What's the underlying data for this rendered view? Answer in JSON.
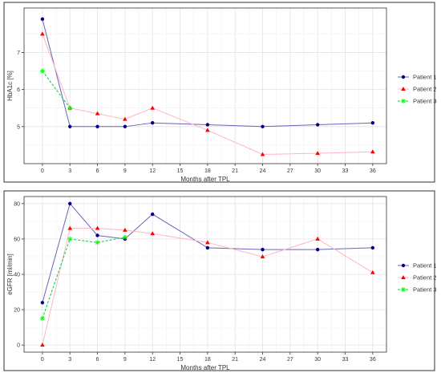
{
  "chart_data": [
    {
      "type": "line",
      "xlabel": "Months after TPL",
      "ylabel": "HbA1c [%]",
      "xlim": [
        -2,
        37.5
      ],
      "ylim": [
        4,
        8.2
      ],
      "x_ticks": [
        0,
        3,
        6,
        9,
        12,
        15,
        18,
        21,
        24,
        27,
        30,
        33,
        36
      ],
      "y_ticks": [
        5,
        6,
        7
      ],
      "grid": true,
      "legend_position": "right",
      "series": [
        {
          "name": "Patient 1",
          "color": "#00008B",
          "line_color": "#6666BB",
          "marker": "circle",
          "line_style": "solid",
          "x": [
            0,
            3,
            6,
            9,
            12,
            18,
            24,
            30,
            36
          ],
          "values": [
            7.9,
            5.0,
            5.0,
            5.0,
            5.1,
            5.05,
            5.0,
            5.05,
            5.1
          ]
        },
        {
          "name": "Patient 2",
          "color": "#FF0000",
          "line_color": "#FFB6C1",
          "marker": "triangle",
          "line_style": "solid",
          "x": [
            0,
            3,
            6,
            9,
            12,
            18,
            24,
            30,
            36
          ],
          "values": [
            7.5,
            5.5,
            5.35,
            5.2,
            5.5,
            4.9,
            4.25,
            4.28,
            4.32
          ]
        },
        {
          "name": "Patient 3",
          "color": "#00FF00",
          "line_color": "#00CC44",
          "marker": "star",
          "line_style": "dashed",
          "x": [
            0,
            3
          ],
          "values": [
            6.5,
            5.5
          ]
        }
      ]
    },
    {
      "type": "line",
      "xlabel": "Months after TPL",
      "ylabel": "eGFR [ml/min]",
      "xlim": [
        -2,
        37.5
      ],
      "ylim": [
        -4,
        84
      ],
      "x_ticks": [
        0,
        3,
        6,
        9,
        12,
        15,
        18,
        21,
        24,
        27,
        30,
        33,
        36
      ],
      "y_ticks": [
        0,
        20,
        40,
        60,
        80
      ],
      "grid": true,
      "legend_position": "right",
      "series": [
        {
          "name": "Patient 1",
          "color": "#00008B",
          "line_color": "#6666BB",
          "marker": "circle",
          "line_style": "solid",
          "x": [
            0,
            3,
            6,
            9,
            12,
            18,
            24,
            30,
            36
          ],
          "values": [
            24,
            80,
            62,
            60,
            74,
            55,
            54,
            54,
            55
          ]
        },
        {
          "name": "Patient 2",
          "color": "#FF0000",
          "line_color": "#FFB6C1",
          "marker": "triangle",
          "line_style": "solid",
          "x": [
            0,
            3,
            6,
            9,
            12,
            18,
            24,
            30,
            36
          ],
          "values": [
            0,
            66,
            66,
            65,
            63,
            58,
            50,
            60,
            41
          ]
        },
        {
          "name": "Patient 3",
          "color": "#00FF00",
          "line_color": "#00CC44",
          "marker": "star",
          "line_style": "dashed",
          "x": [
            0,
            3,
            6,
            9
          ],
          "values": [
            15,
            60,
            58,
            61
          ]
        }
      ]
    }
  ]
}
